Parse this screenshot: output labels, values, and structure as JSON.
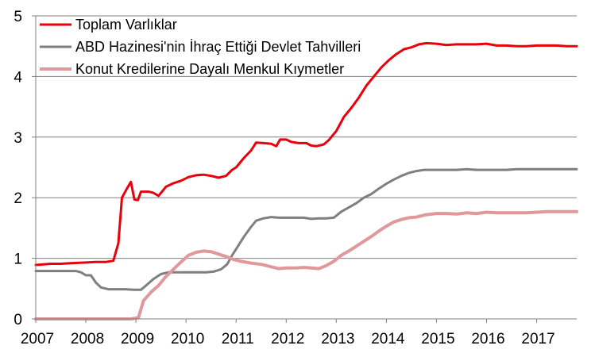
{
  "chart_data": {
    "type": "line",
    "title": "",
    "xlabel": "",
    "ylabel": "",
    "xlim": [
      2007,
      2017.8
    ],
    "ylim": [
      0,
      5
    ],
    "x_ticks": [
      "2007",
      "2008",
      "2009",
      "2010",
      "2011",
      "2012",
      "2013",
      "2014",
      "2015",
      "2016",
      "2017"
    ],
    "y_ticks": [
      "0",
      "1",
      "2",
      "3",
      "4",
      "5"
    ],
    "grid": "horizontal",
    "legend_position": "top-left",
    "series": [
      {
        "name": "Toplam Varlıklar",
        "color": "#e8000b",
        "points": [
          [
            2007.0,
            0.89
          ],
          [
            2007.3,
            0.91
          ],
          [
            2007.5,
            0.91
          ],
          [
            2007.7,
            0.92
          ],
          [
            2008.0,
            0.93
          ],
          [
            2008.2,
            0.94
          ],
          [
            2008.4,
            0.94
          ],
          [
            2008.55,
            0.96
          ],
          [
            2008.65,
            1.25
          ],
          [
            2008.72,
            2.0
          ],
          [
            2008.82,
            2.15
          ],
          [
            2008.9,
            2.26
          ],
          [
            2008.97,
            1.97
          ],
          [
            2009.04,
            1.96
          ],
          [
            2009.1,
            2.1
          ],
          [
            2009.25,
            2.1
          ],
          [
            2009.35,
            2.08
          ],
          [
            2009.45,
            2.03
          ],
          [
            2009.6,
            2.18
          ],
          [
            2009.75,
            2.24
          ],
          [
            2009.9,
            2.28
          ],
          [
            2010.05,
            2.34
          ],
          [
            2010.2,
            2.37
          ],
          [
            2010.35,
            2.38
          ],
          [
            2010.5,
            2.36
          ],
          [
            2010.65,
            2.33
          ],
          [
            2010.8,
            2.36
          ],
          [
            2010.92,
            2.46
          ],
          [
            2011.0,
            2.5
          ],
          [
            2011.15,
            2.65
          ],
          [
            2011.3,
            2.78
          ],
          [
            2011.4,
            2.91
          ],
          [
            2011.55,
            2.9
          ],
          [
            2011.7,
            2.89
          ],
          [
            2011.8,
            2.85
          ],
          [
            2011.88,
            2.96
          ],
          [
            2012.0,
            2.96
          ],
          [
            2012.1,
            2.92
          ],
          [
            2012.25,
            2.9
          ],
          [
            2012.4,
            2.9
          ],
          [
            2012.5,
            2.86
          ],
          [
            2012.6,
            2.85
          ],
          [
            2012.75,
            2.88
          ],
          [
            2012.85,
            2.95
          ],
          [
            2013.0,
            3.1
          ],
          [
            2013.15,
            3.33
          ],
          [
            2013.3,
            3.48
          ],
          [
            2013.45,
            3.65
          ],
          [
            2013.6,
            3.85
          ],
          [
            2013.75,
            4.0
          ],
          [
            2013.9,
            4.15
          ],
          [
            2014.05,
            4.27
          ],
          [
            2014.2,
            4.37
          ],
          [
            2014.35,
            4.45
          ],
          [
            2014.5,
            4.48
          ],
          [
            2014.65,
            4.53
          ],
          [
            2014.8,
            4.55
          ],
          [
            2015.0,
            4.54
          ],
          [
            2015.2,
            4.52
          ],
          [
            2015.4,
            4.53
          ],
          [
            2015.6,
            4.53
          ],
          [
            2015.8,
            4.53
          ],
          [
            2016.0,
            4.54
          ],
          [
            2016.2,
            4.51
          ],
          [
            2016.4,
            4.51
          ],
          [
            2016.6,
            4.5
          ],
          [
            2016.8,
            4.5
          ],
          [
            2017.0,
            4.51
          ],
          [
            2017.2,
            4.51
          ],
          [
            2017.4,
            4.51
          ],
          [
            2017.6,
            4.5
          ],
          [
            2017.8,
            4.5
          ]
        ]
      },
      {
        "name": "ABD Hazinesi'nin İhraç Ettiği Devlet Tahvilleri",
        "color": "#7f7f7f",
        "points": [
          [
            2007.0,
            0.79
          ],
          [
            2007.3,
            0.79
          ],
          [
            2007.6,
            0.79
          ],
          [
            2007.8,
            0.79
          ],
          [
            2007.9,
            0.77
          ],
          [
            2008.0,
            0.72
          ],
          [
            2008.1,
            0.72
          ],
          [
            2008.2,
            0.6
          ],
          [
            2008.3,
            0.52
          ],
          [
            2008.45,
            0.49
          ],
          [
            2008.6,
            0.49
          ],
          [
            2008.8,
            0.49
          ],
          [
            2008.95,
            0.48
          ],
          [
            2009.1,
            0.48
          ],
          [
            2009.2,
            0.55
          ],
          [
            2009.35,
            0.66
          ],
          [
            2009.5,
            0.74
          ],
          [
            2009.65,
            0.77
          ],
          [
            2009.8,
            0.77
          ],
          [
            2010.0,
            0.77
          ],
          [
            2010.2,
            0.77
          ],
          [
            2010.4,
            0.77
          ],
          [
            2010.55,
            0.78
          ],
          [
            2010.7,
            0.82
          ],
          [
            2010.82,
            0.9
          ],
          [
            2010.92,
            1.05
          ],
          [
            2011.0,
            1.15
          ],
          [
            2011.15,
            1.35
          ],
          [
            2011.3,
            1.52
          ],
          [
            2011.4,
            1.62
          ],
          [
            2011.55,
            1.66
          ],
          [
            2011.7,
            1.68
          ],
          [
            2011.85,
            1.67
          ],
          [
            2012.0,
            1.67
          ],
          [
            2012.2,
            1.67
          ],
          [
            2012.35,
            1.67
          ],
          [
            2012.5,
            1.65
          ],
          [
            2012.65,
            1.66
          ],
          [
            2012.8,
            1.66
          ],
          [
            2012.95,
            1.67
          ],
          [
            2013.1,
            1.77
          ],
          [
            2013.25,
            1.84
          ],
          [
            2013.4,
            1.91
          ],
          [
            2013.55,
            2.0
          ],
          [
            2013.7,
            2.06
          ],
          [
            2013.85,
            2.15
          ],
          [
            2014.0,
            2.23
          ],
          [
            2014.15,
            2.3
          ],
          [
            2014.3,
            2.36
          ],
          [
            2014.45,
            2.41
          ],
          [
            2014.6,
            2.44
          ],
          [
            2014.75,
            2.46
          ],
          [
            2015.0,
            2.46
          ],
          [
            2015.2,
            2.46
          ],
          [
            2015.4,
            2.46
          ],
          [
            2015.6,
            2.47
          ],
          [
            2015.8,
            2.46
          ],
          [
            2016.0,
            2.46
          ],
          [
            2016.2,
            2.46
          ],
          [
            2016.4,
            2.46
          ],
          [
            2016.6,
            2.47
          ],
          [
            2016.8,
            2.47
          ],
          [
            2017.0,
            2.47
          ],
          [
            2017.2,
            2.47
          ],
          [
            2017.4,
            2.47
          ],
          [
            2017.6,
            2.47
          ],
          [
            2017.8,
            2.47
          ]
        ]
      },
      {
        "name": "Konut Kredilerine Dayalı Menkul Kıymetler",
        "color": "#e0989a",
        "points": [
          [
            2007.0,
            0.0
          ],
          [
            2007.5,
            0.0
          ],
          [
            2008.0,
            0.0
          ],
          [
            2008.5,
            0.0
          ],
          [
            2008.9,
            0.0
          ],
          [
            2009.05,
            0.02
          ],
          [
            2009.15,
            0.3
          ],
          [
            2009.3,
            0.44
          ],
          [
            2009.45,
            0.55
          ],
          [
            2009.6,
            0.7
          ],
          [
            2009.75,
            0.82
          ],
          [
            2009.9,
            0.94
          ],
          [
            2010.05,
            1.05
          ],
          [
            2010.2,
            1.1
          ],
          [
            2010.35,
            1.12
          ],
          [
            2010.5,
            1.11
          ],
          [
            2010.65,
            1.07
          ],
          [
            2010.8,
            1.03
          ],
          [
            2010.95,
            0.98
          ],
          [
            2011.1,
            0.95
          ],
          [
            2011.3,
            0.92
          ],
          [
            2011.5,
            0.9
          ],
          [
            2011.7,
            0.86
          ],
          [
            2011.85,
            0.83
          ],
          [
            2012.0,
            0.84
          ],
          [
            2012.2,
            0.84
          ],
          [
            2012.35,
            0.85
          ],
          [
            2012.5,
            0.84
          ],
          [
            2012.65,
            0.83
          ],
          [
            2012.8,
            0.88
          ],
          [
            2012.95,
            0.95
          ],
          [
            2013.1,
            1.05
          ],
          [
            2013.25,
            1.12
          ],
          [
            2013.4,
            1.2
          ],
          [
            2013.55,
            1.28
          ],
          [
            2013.7,
            1.36
          ],
          [
            2013.85,
            1.45
          ],
          [
            2014.0,
            1.53
          ],
          [
            2014.15,
            1.6
          ],
          [
            2014.3,
            1.64
          ],
          [
            2014.45,
            1.67
          ],
          [
            2014.6,
            1.68
          ],
          [
            2014.8,
            1.72
          ],
          [
            2015.0,
            1.74
          ],
          [
            2015.2,
            1.74
          ],
          [
            2015.4,
            1.73
          ],
          [
            2015.6,
            1.75
          ],
          [
            2015.8,
            1.74
          ],
          [
            2016.0,
            1.76
          ],
          [
            2016.2,
            1.75
          ],
          [
            2016.4,
            1.75
          ],
          [
            2016.6,
            1.75
          ],
          [
            2016.8,
            1.75
          ],
          [
            2017.0,
            1.76
          ],
          [
            2017.2,
            1.77
          ],
          [
            2017.4,
            1.77
          ],
          [
            2017.6,
            1.77
          ],
          [
            2017.8,
            1.77
          ]
        ]
      }
    ]
  }
}
